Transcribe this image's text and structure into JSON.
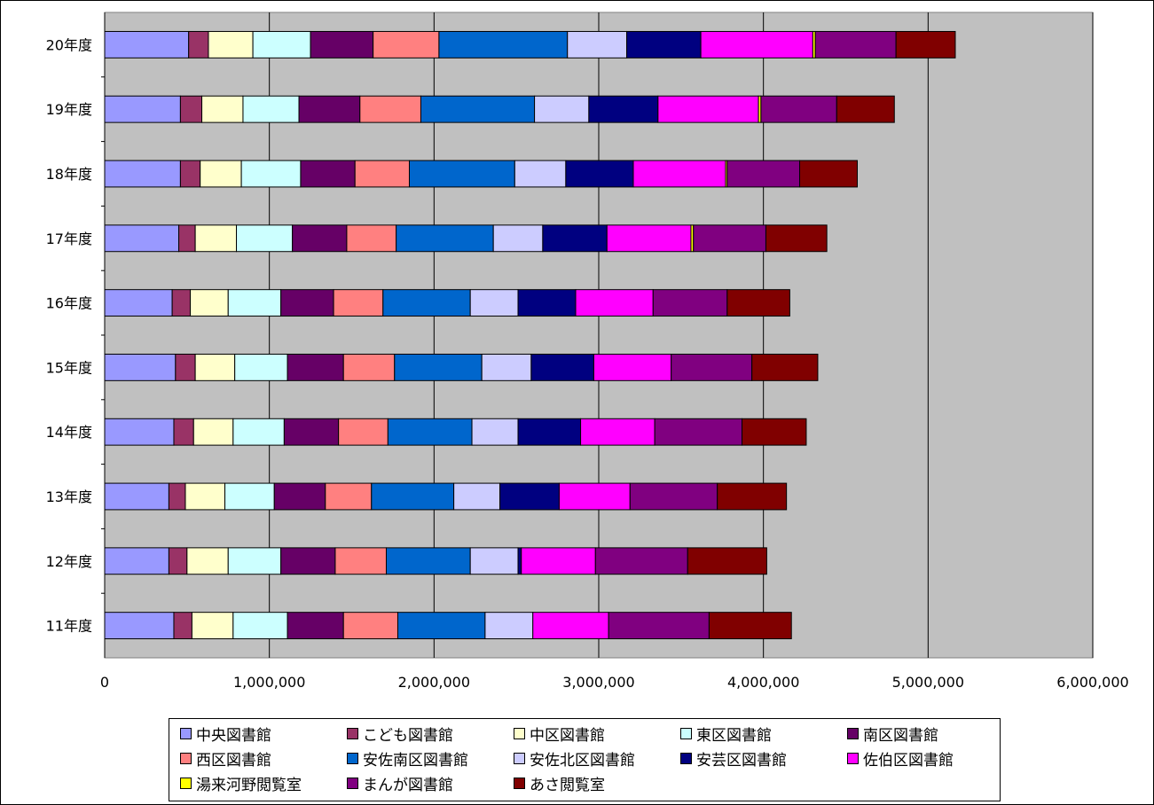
{
  "chart_data": {
    "type": "bar",
    "orientation": "horizontal",
    "stacked": true,
    "categories": [
      "20年度",
      "19年度",
      "18年度",
      "17年度",
      "16年度",
      "15年度",
      "14年度",
      "13年度",
      "12年度",
      "11年度"
    ],
    "x_ticks": [
      "0",
      "1,000,000",
      "2,000,000",
      "3,000,000",
      "4,000,000",
      "5,000,000",
      "6,000,000"
    ],
    "xlim": [
      0,
      6000000
    ],
    "grid": "vertical",
    "legend_position": "bottom",
    "plot_background": "#c0c0c0",
    "series": [
      {
        "name": "中央図書館",
        "color": "#9999ff",
        "values": [
          510000,
          460000,
          460000,
          450000,
          410000,
          430000,
          420000,
          390000,
          390000,
          420000
        ]
      },
      {
        "name": "こども図書館",
        "color": "#993366",
        "values": [
          120000,
          130000,
          120000,
          100000,
          110000,
          120000,
          120000,
          100000,
          110000,
          110000
        ]
      },
      {
        "name": "中区図書館",
        "color": "#ffffcc",
        "values": [
          270000,
          250000,
          250000,
          250000,
          230000,
          240000,
          240000,
          240000,
          250000,
          250000
        ]
      },
      {
        "name": "東区図書館",
        "color": "#ccffff",
        "values": [
          350000,
          340000,
          360000,
          340000,
          320000,
          320000,
          310000,
          300000,
          320000,
          330000
        ]
      },
      {
        "name": "南区図書館",
        "color": "#660066",
        "values": [
          380000,
          370000,
          330000,
          330000,
          320000,
          340000,
          330000,
          310000,
          330000,
          340000
        ]
      },
      {
        "name": "西区図書館",
        "color": "#ff8080",
        "values": [
          400000,
          370000,
          330000,
          300000,
          300000,
          310000,
          300000,
          280000,
          310000,
          330000
        ]
      },
      {
        "name": "安佐南区図書館",
        "color": "#0066cc",
        "values": [
          780000,
          690000,
          640000,
          590000,
          530000,
          530000,
          510000,
          500000,
          510000,
          530000
        ]
      },
      {
        "name": "安佐北区図書館",
        "color": "#ccccff",
        "values": [
          360000,
          330000,
          310000,
          300000,
          290000,
          300000,
          280000,
          280000,
          290000,
          290000
        ]
      },
      {
        "name": "安芸区図書館",
        "color": "#000080",
        "values": [
          450000,
          420000,
          410000,
          390000,
          350000,
          380000,
          380000,
          360000,
          20000,
          0
        ]
      },
      {
        "name": "佐伯区図書館",
        "color": "#ff00ff",
        "values": [
          680000,
          610000,
          560000,
          510000,
          470000,
          470000,
          450000,
          430000,
          450000,
          460000
        ]
      },
      {
        "name": "湯来河野閲覧室",
        "color": "#ffff00",
        "values": [
          15000,
          15000,
          10000,
          15000,
          0,
          0,
          0,
          0,
          0,
          0
        ]
      },
      {
        "name": "まんが図書館",
        "color": "#800080",
        "values": [
          490000,
          460000,
          440000,
          440000,
          450000,
          490000,
          530000,
          530000,
          560000,
          610000
        ]
      },
      {
        "name": "あさ閲覧室",
        "color": "#800000",
        "values": [
          360000,
          350000,
          350000,
          370000,
          380000,
          400000,
          390000,
          420000,
          480000,
          500000
        ]
      }
    ]
  }
}
